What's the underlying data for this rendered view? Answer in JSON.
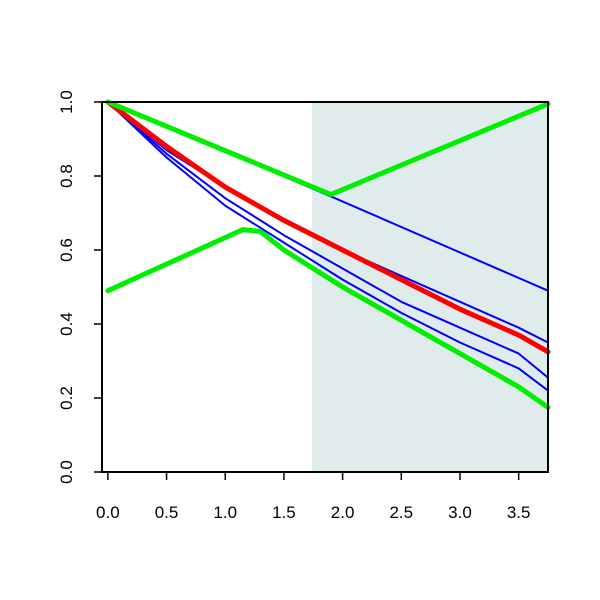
{
  "chart_data": {
    "type": "line",
    "title": "",
    "xlabel": "",
    "ylabel": "",
    "xlim": [
      -0.05,
      3.75
    ],
    "ylim": [
      0.0,
      1.0
    ],
    "x_ticks": [
      "0.0",
      "0.5",
      "1.0",
      "1.5",
      "2.0",
      "2.5",
      "3.0",
      "3.5"
    ],
    "y_ticks": [
      "0.0",
      "0.2",
      "0.4",
      "0.6",
      "0.8",
      "1.0"
    ],
    "grid": false,
    "legend": "none",
    "shaded_region": {
      "x_start": 1.74,
      "x_end": 3.75,
      "color": "#e0ecec"
    },
    "series": [
      {
        "color": "#0000ff",
        "width": "thin",
        "x": [
          0,
          1.9,
          3.75
        ],
        "y": [
          1.0,
          0.745,
          0.49
        ]
      },
      {
        "color": "#0000ff",
        "width": "thin",
        "x": [
          0,
          0.5,
          1.0,
          1.5,
          2.0,
          2.5,
          3.0,
          3.5,
          3.75
        ],
        "y": [
          1.0,
          0.87,
          0.77,
          0.68,
          0.6,
          0.53,
          0.46,
          0.39,
          0.35
        ]
      },
      {
        "color": "#0000ff",
        "width": "thin",
        "x": [
          0,
          0.5,
          1.0,
          1.5,
          2.0,
          2.5,
          3.0,
          3.5,
          3.75
        ],
        "y": [
          1.0,
          0.86,
          0.74,
          0.64,
          0.55,
          0.46,
          0.39,
          0.32,
          0.255
        ]
      },
      {
        "color": "#0000ff",
        "width": "thin",
        "x": [
          0,
          0.5,
          1.0,
          1.5,
          2.0,
          2.5,
          3.0,
          3.5,
          3.75
        ],
        "y": [
          1.0,
          0.85,
          0.72,
          0.62,
          0.52,
          0.43,
          0.35,
          0.28,
          0.22
        ]
      },
      {
        "color": "#ff0000",
        "width": "thick",
        "x": [
          0,
          0.5,
          1.0,
          1.5,
          2.0,
          2.5,
          3.0,
          3.5,
          3.75
        ],
        "y": [
          1.0,
          0.88,
          0.77,
          0.68,
          0.6,
          0.52,
          0.44,
          0.37,
          0.325
        ]
      },
      {
        "color": "#00ee00",
        "width": "thick",
        "x": [
          0,
          1.9,
          3.75
        ],
        "y": [
          1.0,
          0.75,
          0.995
        ]
      },
      {
        "color": "#00ee00",
        "width": "thick",
        "x": [
          0,
          1.15,
          1.3,
          1.5,
          2.0,
          2.5,
          3.0,
          3.5,
          3.75
        ],
        "y": [
          0.49,
          0.655,
          0.65,
          0.6,
          0.5,
          0.41,
          0.32,
          0.23,
          0.175
        ]
      }
    ]
  }
}
